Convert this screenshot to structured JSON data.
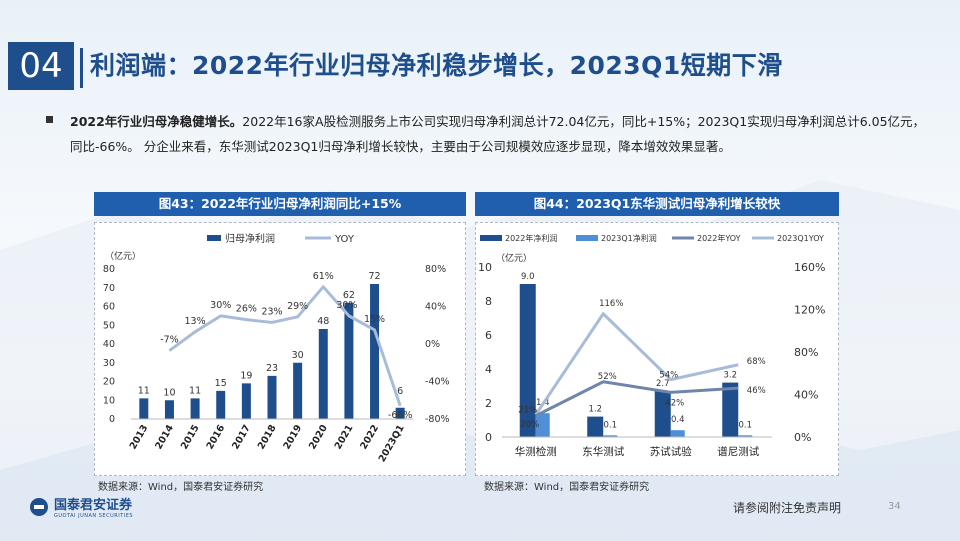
{
  "header": {
    "section_number": "04",
    "title": "利润端：2022年行业归母净利稳步增长，2023Q1短期下滑"
  },
  "summary": {
    "bold_lead": "2022年行业归母净稳健增长。",
    "text": "2022年16家A股检测服务上市公司实现归母净利润总计72.04亿元，同比+15%；2023Q1实现归母净利润总计6.05亿元，同比-66%。 分企业来看，东华测试2023Q1归母净利增长较快，主要由于公司规模效应逐步显现，降本增效效果显著。"
  },
  "chart_data": [
    {
      "type": "bar",
      "title": "图43：2022年行业归母净利润同比+15%",
      "unit_label": "（亿元）",
      "legend": [
        "归母净利润",
        "YOY"
      ],
      "categories": [
        "2013",
        "2014",
        "2015",
        "2016",
        "2017",
        "2018",
        "2019",
        "2020",
        "2021",
        "2022",
        "2023Q1"
      ],
      "series": [
        {
          "name": "归母净利润",
          "type": "bar",
          "values": [
            11,
            10,
            11,
            15,
            19,
            23,
            30,
            48,
            62,
            72,
            6
          ],
          "labels": [
            "11",
            "10",
            "11",
            "15",
            "19",
            "23",
            "30",
            "48",
            "62",
            "72",
            "6"
          ]
        },
        {
          "name": "YOY",
          "type": "line",
          "values": [
            null,
            -7,
            13,
            30,
            26,
            23,
            29,
            61,
            30,
            15,
            -66
          ],
          "labels": [
            "",
            "-7%",
            "13%",
            "30%",
            "26%",
            "23%",
            "29%",
            "61%",
            "30%",
            "15%",
            "-66%"
          ]
        }
      ],
      "y_left": {
        "min": 0,
        "max": 80,
        "ticks": [
          "80",
          "70",
          "60",
          "50",
          "40",
          "30",
          "20",
          "10",
          "0"
        ]
      },
      "y_right": {
        "min": -80,
        "max": 80,
        "ticks": [
          "80%",
          "40%",
          "0%",
          "-40%",
          "-80%"
        ]
      },
      "source": "数据来源：Wind，国泰君安证券研究"
    },
    {
      "type": "bar",
      "title": "图44：2023Q1东华测试归母净利增长较快",
      "unit_label": "（亿元）",
      "legend": [
        "2022年净利润",
        "2023Q1净利润",
        "2022年YOY",
        "2023Q1YOY"
      ],
      "categories": [
        "华测检测",
        "东华测试",
        "苏试试验",
        "谱尼测试"
      ],
      "series": [
        {
          "name": "2022年净利润",
          "type": "bar",
          "values": [
            9.0,
            1.2,
            2.7,
            3.2
          ],
          "labels": [
            "9.0",
            "1.2",
            "2.7",
            "3.2"
          ]
        },
        {
          "name": "2023Q1净利润",
          "type": "bar",
          "values": [
            1.4,
            0.1,
            0.4,
            0.1
          ],
          "labels": [
            "1.4",
            "0.1",
            "0.4",
            "0.1"
          ]
        },
        {
          "name": "2022年YOY",
          "type": "line",
          "values": [
            20,
            52,
            42,
            46
          ],
          "labels": [
            "20%",
            "52%",
            "42%",
            "46%"
          ]
        },
        {
          "name": "2023Q1YOY",
          "type": "line",
          "values": [
            21,
            116,
            54,
            68
          ],
          "labels": [
            "21%",
            "116%",
            "54%",
            "68%"
          ]
        }
      ],
      "y_left": {
        "min": 0,
        "max": 10,
        "ticks": [
          "10",
          "8",
          "6",
          "4",
          "2",
          "0"
        ]
      },
      "y_right": {
        "min": 0,
        "max": 160,
        "ticks": [
          "160%",
          "120%",
          "80%",
          "40%",
          "0%"
        ]
      },
      "source": "数据来源：Wind，国泰君安证券研究"
    }
  ],
  "footer": {
    "logo_cn": "国泰君安证券",
    "logo_en": "GUOTAI JUNAN SECURITIES",
    "disclaimer": "请参阅附注免责声明",
    "page_number": "34"
  },
  "colors": {
    "brand": "#1f4e8c",
    "panel_title_bg": "#1f5fae",
    "bar_dark": "#1f4e8c",
    "bar_mid": "#2e6fc2",
    "bar_light": "#4f8fd8",
    "line_light": "#a8bcd8",
    "line_dark": "#6f86aa"
  }
}
